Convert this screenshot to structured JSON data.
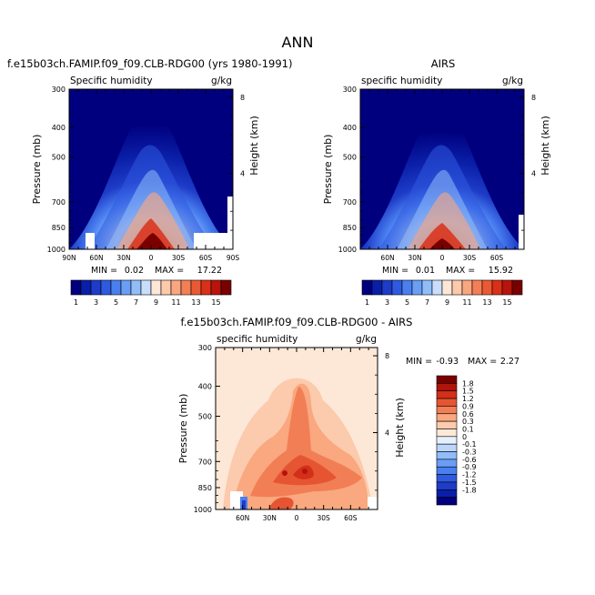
{
  "figure": {
    "title": "ANN"
  },
  "colors": {
    "bar1": [
      "#00007f",
      "#0a1fa8",
      "#1e3cc8",
      "#2f5ae0",
      "#4a7ff0",
      "#6a9ef5",
      "#90bdfa",
      "#c8defc",
      "#fde8d8",
      "#fcc9ab",
      "#f9a77f",
      "#f37f57",
      "#e95a34",
      "#d93018",
      "#b8140c",
      "#7a0000"
    ],
    "bar2": [
      "#00007f",
      "#0a1fa8",
      "#1e3cc8",
      "#2f5ae0",
      "#4a7ff0",
      "#6a9ef5",
      "#90bdfa",
      "#bcd6fb",
      "#e6f0fd",
      "#fde8d8",
      "#fccaac",
      "#f9a87f",
      "#f27e55",
      "#e65532",
      "#d42f18",
      "#b0150b",
      "#7a0000"
    ],
    "missing": "#ffffff"
  },
  "chart_data": [
    {
      "type": "heatmap",
      "title": "f.e15b03ch.FAMIP.f09_f09.CLB-RDG00 (yrs 1980-1991)",
      "variable": "Specific humidity",
      "units": "g/kg",
      "ylabel": "Pressure (mb)",
      "y2label": "Height (km)",
      "x_ticks": [
        "90N",
        "60N",
        "30N",
        "0",
        "30S",
        "60S",
        "90S"
      ],
      "y_ticks": [
        "300",
        "400",
        "500",
        "700",
        "850",
        "1000"
      ],
      "y2_ticks": [
        "8",
        "4"
      ],
      "ylim": [
        1000,
        300
      ],
      "min": "0.02",
      "max": "17.22",
      "min_label": "MIN =",
      "max_label": "MAX =",
      "levels": [
        "1",
        "3",
        "5",
        "7",
        "9",
        "11",
        "13",
        "15"
      ]
    },
    {
      "type": "heatmap",
      "title": "AIRS",
      "variable": "specific humidity",
      "units": "g/kg",
      "ylabel": "Pressure (mb)",
      "y2label": "Height (km)",
      "x_ticks": [
        "60N",
        "30N",
        "0",
        "30S",
        "60S"
      ],
      "y_ticks": [
        "300",
        "400",
        "500",
        "700",
        "850",
        "1000"
      ],
      "y2_ticks": [
        "8",
        "4"
      ],
      "ylim": [
        1000,
        300
      ],
      "min": "0.01",
      "max": "15.92",
      "min_label": "MIN =",
      "max_label": "MAX =",
      "levels": [
        "1",
        "3",
        "5",
        "7",
        "9",
        "11",
        "13",
        "15"
      ]
    },
    {
      "type": "heatmap",
      "title": "f.e15b03ch.FAMIP.f09_f09.CLB-RDG00 - AIRS",
      "variable": "specific humidity",
      "units": "g/kg",
      "ylabel": "Pressure (mb)",
      "y2label": "Height (km)",
      "x_ticks": [
        "60N",
        "30N",
        "0",
        "30S",
        "60S"
      ],
      "y_ticks": [
        "300",
        "400",
        "500",
        "700",
        "850",
        "1000"
      ],
      "y2_ticks": [
        "8",
        "4"
      ],
      "ylim": [
        1000,
        300
      ],
      "min": "-0.93",
      "max": "2.27",
      "min_label": "MIN =",
      "max_label": "MAX =",
      "levels": [
        "1.8",
        "1.5",
        "1.2",
        "0.9",
        "0.6",
        "0.3",
        "0.1",
        "0",
        "-0.1",
        "-0.3",
        "-0.6",
        "-0.9",
        "-1.2",
        "-1.5",
        "-1.8"
      ]
    }
  ]
}
